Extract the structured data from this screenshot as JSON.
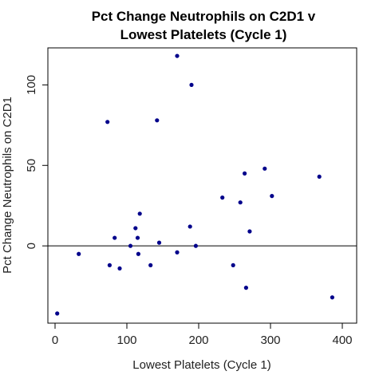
{
  "chart_data": {
    "type": "scatter",
    "title": [
      "Pct Change Neutrophils on C2D1 v",
      "Lowest Platelets (Cycle 1)"
    ],
    "xlabel": "Lowest Platelets (Cycle 1)",
    "ylabel": "Pct Change Neutrophils on C2D1",
    "xlim": [
      -10,
      420
    ],
    "ylim": [
      -48,
      123
    ],
    "xticks": [
      0,
      100,
      200,
      300,
      400
    ],
    "yticks": [
      0,
      50,
      100
    ],
    "reference_line_y": 0,
    "point_color": "#00008B",
    "grid": false,
    "legend": false,
    "points": [
      {
        "x": 3,
        "y": -42
      },
      {
        "x": 33,
        "y": -5
      },
      {
        "x": 73,
        "y": 77
      },
      {
        "x": 76,
        "y": -12
      },
      {
        "x": 83,
        "y": 5
      },
      {
        "x": 90,
        "y": -14
      },
      {
        "x": 105,
        "y": 0
      },
      {
        "x": 112,
        "y": 11
      },
      {
        "x": 115,
        "y": 5
      },
      {
        "x": 116,
        "y": -5
      },
      {
        "x": 118,
        "y": 20
      },
      {
        "x": 133,
        "y": -12
      },
      {
        "x": 142,
        "y": 78
      },
      {
        "x": 145,
        "y": 2
      },
      {
        "x": 170,
        "y": 118
      },
      {
        "x": 170,
        "y": -4
      },
      {
        "x": 188,
        "y": 12
      },
      {
        "x": 190,
        "y": 100
      },
      {
        "x": 196,
        "y": 0
      },
      {
        "x": 233,
        "y": 30
      },
      {
        "x": 248,
        "y": -12
      },
      {
        "x": 258,
        "y": 27
      },
      {
        "x": 264,
        "y": 45
      },
      {
        "x": 266,
        "y": -26
      },
      {
        "x": 271,
        "y": 9
      },
      {
        "x": 292,
        "y": 48
      },
      {
        "x": 302,
        "y": 31
      },
      {
        "x": 368,
        "y": 43
      },
      {
        "x": 386,
        "y": -32
      }
    ]
  }
}
